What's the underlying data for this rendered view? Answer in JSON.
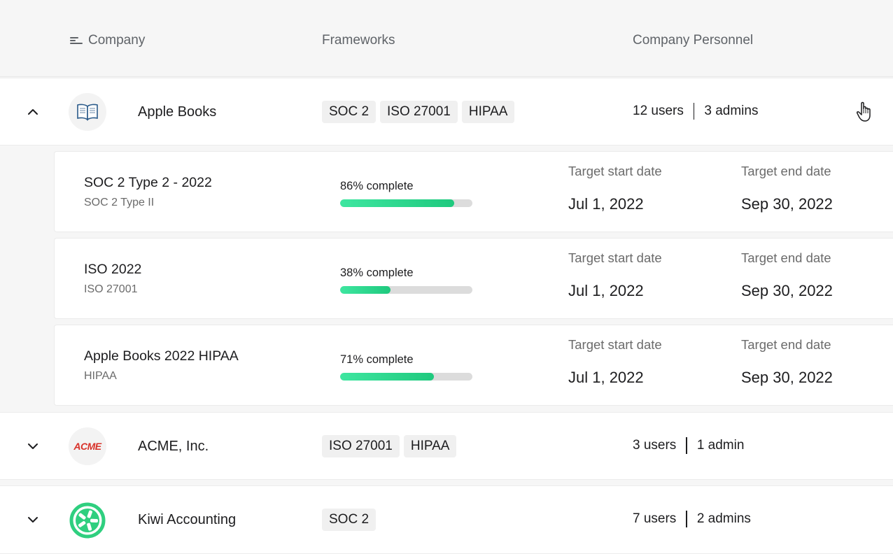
{
  "header": {
    "company": "Company",
    "frameworks": "Frameworks",
    "personnel": "Company Personnel"
  },
  "companies": [
    {
      "name": "Apple Books",
      "logo_icon": "book-icon",
      "expanded": true,
      "frameworks": [
        "SOC 2",
        "ISO 27001",
        "HIPAA"
      ],
      "users": "12 users",
      "admins": "3 admins",
      "audits": [
        {
          "title": "SOC 2 Type 2 - 2022",
          "type": "SOC 2 Type II",
          "progress_label": "86% complete",
          "progress": 86,
          "start_label": "Target start date",
          "start": "Jul 1, 2022",
          "end_label": "Target end date",
          "end": "Sep 30, 2022"
        },
        {
          "title": "ISO 2022",
          "type": "ISO 27001",
          "progress_label": "38% complete",
          "progress": 38,
          "start_label": "Target start date",
          "start": "Jul 1, 2022",
          "end_label": "Target end date",
          "end": "Sep 30, 2022"
        },
        {
          "title": "Apple Books 2022 HIPAA",
          "type": "HIPAA",
          "progress_label": "71% complete",
          "progress": 71,
          "start_label": "Target start date",
          "start": "Jul 1, 2022",
          "end_label": "Target end date",
          "end": "Sep 30, 2022"
        }
      ]
    },
    {
      "name": "ACME, Inc.",
      "logo_text": "ACME",
      "logo_color": "#d8322a",
      "expanded": false,
      "frameworks": [
        "ISO 27001",
        "HIPAA"
      ],
      "users": "3 users",
      "admins": "1 admin"
    },
    {
      "name": "Kiwi Accounting",
      "logo_icon": "kiwi-logo-icon",
      "logo_color": "#2fcf7f",
      "expanded": false,
      "frameworks": [
        "SOC 2"
      ],
      "users": "7 users",
      "admins": "2 admins"
    }
  ],
  "colors": {
    "progress_fill": "#2fd68b",
    "progress_track": "#dcdcdc",
    "background": "#f6f6f6"
  }
}
